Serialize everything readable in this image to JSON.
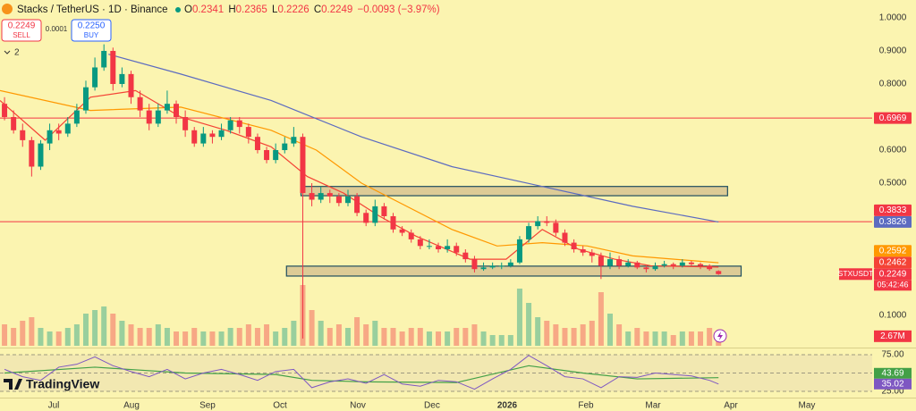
{
  "header": {
    "symbol": "Stacks / TetherUS · 1D · Binance",
    "ohlc_keys": [
      "O",
      "H",
      "L",
      "C"
    ],
    "change": "−0.0093 (−3.97%)",
    "sell_label": "SELL",
    "spread": 0.0001,
    "buy_price": "0.2250",
    "buy_label": "BUY",
    "indicators_count": 2,
    "logo": "TradingView"
  },
  "chart_data": {
    "type": "candlestick",
    "up_color": "#089981",
    "down_color": "#f23645",
    "xlim": [
      0,
      96.5
    ],
    "xticks": [
      {
        "value": 5.94,
        "label": "Jul"
      },
      {
        "value": 14.55,
        "label": "Aug"
      },
      {
        "value": 22.96,
        "label": "Sep"
      },
      {
        "value": 30.98,
        "label": "Oct"
      },
      {
        "value": 39.59,
        "label": "Nov"
      },
      {
        "value": 47.8,
        "label": "Dec"
      },
      {
        "value": 56.12,
        "label": "2026"
      },
      {
        "value": 64.83,
        "label": "Feb"
      },
      {
        "value": 72.25,
        "label": "Mar"
      },
      {
        "value": 80.86,
        "label": "Apr"
      },
      {
        "value": 89.27,
        "label": "May"
      }
    ],
    "ylim": [
      0.0081,
      1.054
    ],
    "yticks": [
      {
        "value": 1,
        "label": "1.0000"
      },
      {
        "value": 0.9,
        "label": "0.9000"
      },
      {
        "value": 0.8,
        "label": "0.8000"
      },
      {
        "value": 0.7,
        "label": "0.7000"
      },
      {
        "value": 0.6,
        "label": "0.6000"
      },
      {
        "value": 0.5,
        "label": "0.5000"
      },
      {
        "value": 0.1,
        "label": "0.1000"
      }
    ],
    "ohlc": [
      [
        0.74,
        0.76,
        0.69,
        0.7
      ],
      [
        0.7,
        0.72,
        0.65,
        0.66
      ],
      [
        0.66,
        0.68,
        0.61,
        0.63
      ],
      [
        0.63,
        0.64,
        0.52,
        0.55
      ],
      [
        0.55,
        0.63,
        0.54,
        0.62
      ],
      [
        0.62,
        0.68,
        0.6,
        0.66
      ],
      [
        0.66,
        0.68,
        0.63,
        0.65
      ],
      [
        0.65,
        0.7,
        0.64,
        0.68
      ],
      [
        0.68,
        0.74,
        0.67,
        0.72
      ],
      [
        0.72,
        0.81,
        0.71,
        0.79
      ],
      [
        0.79,
        0.88,
        0.78,
        0.85
      ],
      [
        0.85,
        0.92,
        0.84,
        0.9
      ],
      [
        0.9,
        0.91,
        0.78,
        0.8
      ],
      [
        0.8,
        0.85,
        0.79,
        0.83
      ],
      [
        0.83,
        0.84,
        0.74,
        0.76
      ],
      [
        0.76,
        0.78,
        0.7,
        0.72
      ],
      [
        0.72,
        0.74,
        0.66,
        0.68
      ],
      [
        0.68,
        0.74,
        0.67,
        0.72
      ],
      [
        0.72,
        0.78,
        0.71,
        0.74
      ],
      [
        0.74,
        0.75,
        0.68,
        0.7
      ],
      [
        0.7,
        0.72,
        0.64,
        0.66
      ],
      [
        0.66,
        0.67,
        0.61,
        0.62
      ],
      [
        0.62,
        0.67,
        0.61,
        0.65
      ],
      [
        0.65,
        0.66,
        0.62,
        0.64
      ],
      [
        0.64,
        0.68,
        0.63,
        0.66
      ],
      [
        0.66,
        0.7,
        0.65,
        0.69
      ],
      [
        0.69,
        0.7,
        0.65,
        0.67
      ],
      [
        0.67,
        0.68,
        0.62,
        0.64
      ],
      [
        0.64,
        0.65,
        0.59,
        0.6
      ],
      [
        0.6,
        0.61,
        0.56,
        0.57
      ],
      [
        0.57,
        0.62,
        0.56,
        0.6
      ],
      [
        0.6,
        0.64,
        0.59,
        0.62
      ],
      [
        0.62,
        0.67,
        0.61,
        0.64
      ],
      [
        0.64,
        0.65,
        0.03,
        0.47
      ],
      [
        0.47,
        0.5,
        0.43,
        0.45
      ],
      [
        0.45,
        0.49,
        0.44,
        0.47
      ],
      [
        0.47,
        0.48,
        0.44,
        0.46
      ],
      [
        0.46,
        0.47,
        0.43,
        0.44
      ],
      [
        0.44,
        0.48,
        0.43,
        0.46
      ],
      [
        0.46,
        0.47,
        0.4,
        0.41
      ],
      [
        0.41,
        0.42,
        0.37,
        0.38
      ],
      [
        0.38,
        0.45,
        0.37,
        0.43
      ],
      [
        0.43,
        0.44,
        0.39,
        0.4
      ],
      [
        0.4,
        0.41,
        0.35,
        0.36
      ],
      [
        0.36,
        0.37,
        0.34,
        0.35
      ],
      [
        0.35,
        0.36,
        0.32,
        0.33
      ],
      [
        0.33,
        0.34,
        0.3,
        0.31
      ],
      [
        0.31,
        0.33,
        0.3,
        0.31
      ],
      [
        0.31,
        0.32,
        0.29,
        0.3
      ],
      [
        0.3,
        0.33,
        0.29,
        0.31
      ],
      [
        0.31,
        0.32,
        0.28,
        0.29
      ],
      [
        0.29,
        0.3,
        0.26,
        0.27
      ],
      [
        0.27,
        0.28,
        0.23,
        0.24
      ],
      [
        0.24,
        0.26,
        0.235,
        0.245
      ],
      [
        0.245,
        0.26,
        0.24,
        0.25
      ],
      [
        0.25,
        0.26,
        0.24,
        0.25
      ],
      [
        0.25,
        0.27,
        0.245,
        0.26
      ],
      [
        0.26,
        0.34,
        0.255,
        0.33
      ],
      [
        0.33,
        0.38,
        0.32,
        0.37
      ],
      [
        0.37,
        0.4,
        0.36,
        0.385
      ],
      [
        0.385,
        0.4,
        0.37,
        0.38
      ],
      [
        0.38,
        0.39,
        0.34,
        0.35
      ],
      [
        0.35,
        0.36,
        0.31,
        0.32
      ],
      [
        0.32,
        0.33,
        0.29,
        0.3
      ],
      [
        0.3,
        0.31,
        0.28,
        0.29
      ],
      [
        0.29,
        0.3,
        0.26,
        0.28
      ],
      [
        0.28,
        0.29,
        0.21,
        0.25
      ],
      [
        0.25,
        0.29,
        0.24,
        0.27
      ],
      [
        0.27,
        0.28,
        0.24,
        0.25
      ],
      [
        0.25,
        0.27,
        0.245,
        0.26
      ],
      [
        0.26,
        0.265,
        0.24,
        0.245
      ],
      [
        0.245,
        0.25,
        0.23,
        0.24
      ],
      [
        0.24,
        0.26,
        0.235,
        0.25
      ],
      [
        0.25,
        0.265,
        0.245,
        0.255
      ],
      [
        0.255,
        0.26,
        0.24,
        0.25
      ],
      [
        0.25,
        0.27,
        0.245,
        0.26
      ],
      [
        0.26,
        0.265,
        0.25,
        0.255
      ],
      [
        0.255,
        0.26,
        0.24,
        0.25
      ],
      [
        0.25,
        0.255,
        0.235,
        0.24
      ],
      [
        0.2341,
        0.2365,
        0.2226,
        0.2249
      ]
    ],
    "volume": [
      6,
      5,
      7,
      8,
      5,
      4,
      4,
      5,
      6,
      9,
      10,
      11,
      9,
      7,
      6,
      5,
      5,
      6,
      5,
      4,
      4,
      5,
      4,
      4,
      4,
      5,
      5,
      6,
      5,
      6,
      4,
      5,
      7,
      17,
      10,
      7,
      5,
      6,
      5,
      8,
      6,
      7,
      5,
      5,
      4,
      5,
      5,
      4,
      4,
      4,
      5,
      5,
      6,
      4,
      3,
      3,
      3,
      16,
      12,
      8,
      7,
      6,
      5,
      5,
      6,
      7,
      15,
      9,
      6,
      4,
      5,
      4,
      4,
      4,
      3,
      4,
      4,
      4,
      5,
      2.67
    ],
    "volume_lim": [
      0,
      25
    ],
    "volume_last_label": "2.67M",
    "ma": [
      {
        "color": "#5c6bc0",
        "x": [
          12,
          20,
          30,
          40,
          50,
          60,
          70,
          79.5
        ],
        "values": [
          0.89,
          0.83,
          0.75,
          0.64,
          0.55,
          0.49,
          0.43,
          0.3826
        ]
      },
      {
        "color": "#ff9800",
        "x": [
          0,
          10,
          20,
          30,
          35,
          40,
          50,
          55,
          60,
          65,
          70,
          79.5
        ],
        "values": [
          0.78,
          0.72,
          0.73,
          0.66,
          0.6,
          0.5,
          0.36,
          0.31,
          0.32,
          0.31,
          0.28,
          0.2592
        ]
      },
      {
        "color": "#f44336",
        "x": [
          0,
          5,
          10,
          15,
          20,
          25,
          30,
          34,
          38,
          42,
          46,
          52,
          56,
          60,
          64,
          68,
          72,
          79.5
        ],
        "values": [
          0.75,
          0.63,
          0.76,
          0.78,
          0.7,
          0.66,
          0.61,
          0.52,
          0.47,
          0.4,
          0.34,
          0.27,
          0.27,
          0.36,
          0.3,
          0.27,
          0.25,
          0.2462
        ]
      }
    ],
    "hlines": [
      {
        "value": 0.6969,
        "color": "#f23645"
      },
      {
        "value": 0.3833,
        "color": "#f23645"
      }
    ],
    "zones": [
      {
        "start": 33.3,
        "end": 80.5,
        "top": 0.49,
        "bottom": 0.462
      },
      {
        "start": 31.7,
        "end": 82,
        "top": 0.249,
        "bottom": 0.219
      }
    ],
    "last_symbol": "STXUSDT",
    "countdown": "05:42:46",
    "rsi": {
      "color": "#7e57c2",
      "ylim": [
        18.9,
        81.1
      ],
      "yticks": [
        {
          "value": 75,
          "label": "75.00"
        },
        {
          "value": 25,
          "label": "25.00"
        }
      ],
      "x": [
        0.5,
        2.5,
        4.5,
        6.5,
        8.5,
        10.5,
        12.5,
        14.5,
        16.5,
        18.5,
        20.5,
        22.5,
        24.5,
        26.5,
        28.5,
        30.5,
        32.5,
        34.5,
        36.5,
        38.5,
        40.5,
        42.5,
        44.5,
        46.5,
        48.5,
        50.5,
        52.5,
        54.5,
        56.5,
        58.5,
        60.5,
        62.5,
        64.5,
        66.5,
        68.5,
        70.5,
        72.5,
        74.5,
        76.5,
        78.5,
        79.5
      ],
      "values": [
        55,
        45,
        40,
        58,
        62,
        72,
        60,
        52,
        45,
        55,
        42,
        50,
        55,
        48,
        40,
        52,
        55,
        30,
        38,
        42,
        36,
        48,
        35,
        32,
        40,
        38,
        28,
        42,
        55,
        74,
        60,
        45,
        42,
        30,
        45,
        44,
        50,
        48,
        46,
        40,
        35.02
      ],
      "ma_color": "#43a047",
      "ma_x": [
        0.5,
        10.5,
        20.5,
        30.5,
        34.5,
        40.5,
        50.5,
        58.5,
        64.5,
        70.5,
        79.5
      ],
      "ma_values": [
        50,
        58,
        50,
        48,
        40,
        38,
        37,
        60,
        50,
        42,
        43.69
      ]
    }
  }
}
